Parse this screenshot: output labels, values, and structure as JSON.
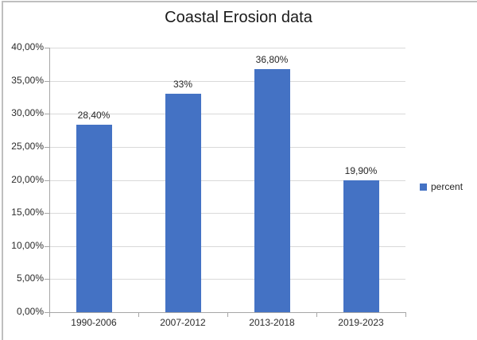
{
  "chart": {
    "title": "Coastal Erosion data",
    "legend_label": "percent"
  },
  "chart_data": {
    "type": "bar",
    "title": "Coastal Erosion data",
    "categories": [
      "1990-2006",
      "2007-2012",
      "2013-2018",
      "2019-2023"
    ],
    "series": [
      {
        "name": "percent",
        "values": [
          28.4,
          33,
          36.8,
          19.9
        ]
      }
    ],
    "data_labels": [
      "28,40%",
      "33%",
      "36,80%",
      "19,90%"
    ],
    "xlabel": "",
    "ylabel": "",
    "ylim": [
      0,
      40
    ],
    "ytick_step": 5,
    "ytick_labels": [
      "0,00%",
      "5,00%",
      "10,00%",
      "15,00%",
      "20,00%",
      "25,00%",
      "30,00%",
      "35,00%",
      "40,00%"
    ],
    "grid": true,
    "legend_position": "right",
    "bar_color": "#4472C4",
    "gridline_color": "#d9d9d9",
    "axis_color": "#a6a6a6"
  }
}
